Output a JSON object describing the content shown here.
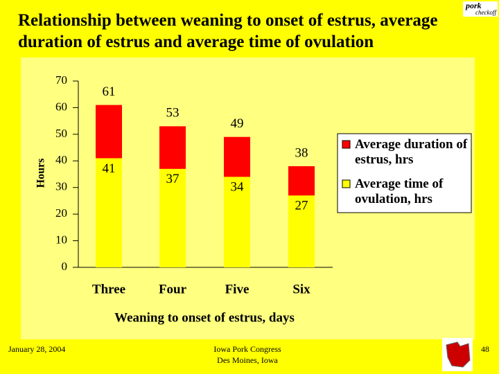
{
  "slide": {
    "date": "January 28, 2004",
    "venue": "Iowa Pork Congress",
    "place": "Des Moines, Iowa",
    "page": "48",
    "logo": [
      "pork",
      "checkoff"
    ]
  },
  "chart_data": {
    "type": "bar",
    "overlap": true,
    "title": "Relationship between weaning to onset of estrus, average duration of estrus and average time of ovulation",
    "x_label": "Weaning to onset of estrus, days",
    "y_label": "Hours",
    "categories": [
      "Three",
      "Four",
      "Five",
      "Six"
    ],
    "series": [
      {
        "name": "Average duration of estrus, hrs",
        "color": "#ff0000",
        "values": [
          61,
          53,
          49,
          38
        ]
      },
      {
        "name": "Average time of ovulation, hrs",
        "color": "#ffff00",
        "values": [
          41,
          37,
          34,
          27
        ]
      }
    ],
    "ylim": [
      0,
      70
    ],
    "yticks": [
      0,
      10,
      20,
      30,
      40,
      50,
      60,
      70
    ],
    "legend": "right"
  }
}
